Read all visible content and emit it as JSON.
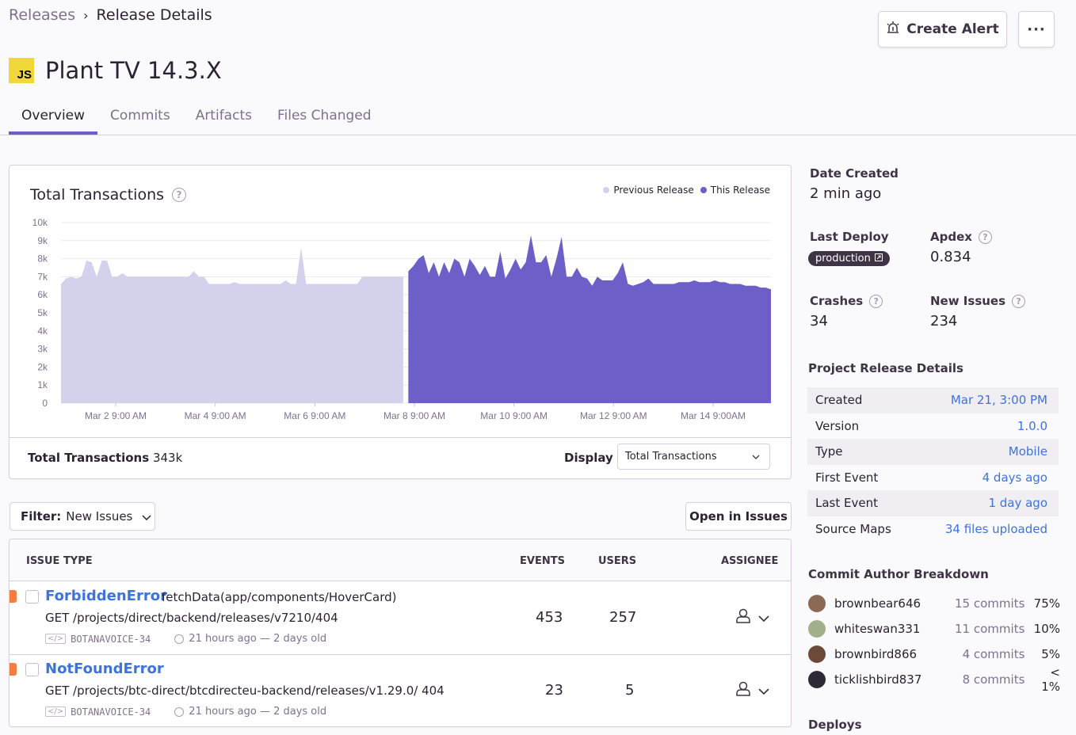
{
  "breadcrumb": {
    "parent": "Releases",
    "current": "Release Details"
  },
  "header": {
    "title": "Plant TV 14.3.X",
    "platform_badge": "JS",
    "create_alert_label": "Create Alert",
    "more_label": "···"
  },
  "tabs": [
    {
      "label": "Overview",
      "active": true
    },
    {
      "label": "Commits",
      "active": false
    },
    {
      "label": "Artifacts",
      "active": false
    },
    {
      "label": "Files Changed",
      "active": false
    }
  ],
  "chart_panel": {
    "total_label": "Total Transactions",
    "total_value": "343k",
    "display_label": "Display",
    "display_value": "Total Transactions"
  },
  "chart_data": {
    "type": "area",
    "title": "Total Transactions",
    "ylim": [
      0,
      10000
    ],
    "y_ticks": [
      "0",
      "1k",
      "2k",
      "3k",
      "4k",
      "5k",
      "6k",
      "7k",
      "8k",
      "9k",
      "10k"
    ],
    "x_ticks": [
      "Mar 2 9:00 AM",
      "Mar 4 9:00 AM",
      "Mar 6 9:00 AM",
      "Mar 8 9:00 AM",
      "Mar 10 9:00 AM",
      "Mar 12 9:00 AM",
      "Mar 14 9:00AM"
    ],
    "grid": true,
    "legend_position": "top-right",
    "series": [
      {
        "name": "Previous Release",
        "color": "#d4d1ec",
        "x": [
          0,
          1,
          2,
          3,
          4,
          5,
          6,
          7,
          8,
          9,
          10,
          11,
          12,
          13,
          14,
          15,
          16,
          17,
          18,
          19,
          20,
          21,
          22,
          23,
          24,
          25,
          26,
          27,
          28,
          29,
          30,
          31,
          32,
          33,
          34,
          35,
          36,
          37,
          38,
          39,
          40,
          41,
          42,
          43,
          44,
          45,
          46,
          47,
          48,
          49,
          50,
          51,
          52,
          53,
          54,
          55,
          56,
          57,
          58,
          59,
          60,
          61,
          62,
          63,
          64,
          65,
          66,
          67
        ],
        "values": [
          6600,
          6900,
          7000,
          6900,
          7000,
          7900,
          7800,
          7000,
          7900,
          7900,
          7000,
          7000,
          7200,
          7000,
          7000,
          7000,
          7000,
          7000,
          7000,
          7000,
          7000,
          7000,
          7000,
          7000,
          7000,
          7000,
          7300,
          7000,
          7000,
          6600,
          6600,
          6600,
          6600,
          6600,
          6700,
          6600,
          6600,
          6600,
          6600,
          6600,
          6600,
          6600,
          6600,
          6600,
          6800,
          6600,
          6600,
          8600,
          6600,
          6600,
          6600,
          6600,
          6600,
          6600,
          6600,
          6600,
          6600,
          6600,
          6600,
          7000,
          7000,
          7000,
          7000,
          7000,
          7000,
          7000,
          7000,
          7000
        ]
      },
      {
        "name": "This Release",
        "color": "#6c5fc7",
        "x": [
          68,
          69,
          70,
          71,
          72,
          73,
          74,
          75,
          76,
          77,
          78,
          79,
          80,
          81,
          82,
          83,
          84,
          85,
          86,
          87,
          88,
          89,
          90,
          91,
          92,
          93,
          94,
          95,
          96,
          97,
          98,
          99,
          100,
          101,
          102,
          103,
          104,
          105,
          106,
          107,
          108,
          109,
          110,
          111,
          112,
          113,
          114,
          115,
          116,
          117,
          118,
          119,
          120,
          121,
          122,
          123,
          124,
          125,
          126,
          127,
          128,
          129,
          130,
          131,
          132,
          133,
          134,
          135,
          136,
          137,
          138,
          139
        ],
        "values": [
          7300,
          7600,
          8000,
          8200,
          7200,
          7800,
          7000,
          7800,
          7200,
          8000,
          7800,
          7000,
          8000,
          7600,
          7100,
          7600,
          7000,
          7000,
          8400,
          6900,
          7400,
          8000,
          7400,
          7800,
          9300,
          7800,
          7800,
          8200,
          7000,
          8000,
          9200,
          7000,
          7000,
          7500,
          7000,
          6900,
          6500,
          7000,
          6800,
          6800,
          6800,
          7200,
          7800,
          6600,
          6500,
          6600,
          6700,
          6900,
          6600,
          6600,
          6600,
          6600,
          6600,
          6700,
          6700,
          6700,
          6800,
          6700,
          6700,
          6700,
          6800,
          6700,
          6700,
          6600,
          6600,
          6600,
          6500,
          6500,
          6500,
          6400,
          6400,
          6300
        ]
      }
    ]
  },
  "filter": {
    "prefix": "Filter:",
    "value": "New Issues"
  },
  "open_in_issues_label": "Open in Issues",
  "issues_table": {
    "columns": {
      "issue_type": "ISSUE TYPE",
      "events": "EVENTS",
      "users": "USERS",
      "assignee": "ASSIGNEE"
    },
    "rows": [
      {
        "title": "ForbiddenError",
        "culprit": "fetchData(app/components/HoverCard)",
        "message": "GET /projects/direct/backend/releases/v7210/404",
        "short_id": "BOTANAVOICE-34",
        "age": "21 hours ago — 2 days old",
        "events": "453",
        "users": "257"
      },
      {
        "title": "NotFoundError",
        "culprit": "",
        "message": "GET /projects/btc-direct/btcdirecteu-backend/releases/v1.29.0/ 404",
        "short_id": "BOTANAVOICE-34",
        "age": "21 hours ago — 2 days old",
        "events": "23",
        "users": "5"
      }
    ]
  },
  "sidebar": {
    "date_created_label": "Date Created",
    "date_created_value": "2 min ago",
    "last_deploy_label": "Last Deploy",
    "last_deploy_env": "production",
    "apdex_label": "Apdex",
    "apdex_value": "0.834",
    "crashes_label": "Crashes",
    "crashes_value": "34",
    "new_issues_label": "New Issues",
    "new_issues_value": "234",
    "project_details_title": "Project Release Details",
    "project_details": [
      {
        "key": "Created",
        "value": "Mar 21, 3:00 PM"
      },
      {
        "key": "Version",
        "value": "1.0.0"
      },
      {
        "key": "Type",
        "value": "Mobile"
      },
      {
        "key": "First Event",
        "value": "4 days ago"
      },
      {
        "key": "Last Event",
        "value": "1 day ago"
      },
      {
        "key": "Source Maps",
        "value": "34 files uploaded"
      }
    ],
    "commit_authors_title": "Commit Author Breakdown",
    "commit_authors": [
      {
        "name": "brownbear646",
        "commits": "15 commits",
        "percent": "75%",
        "avatar_color": "#8a6a55"
      },
      {
        "name": "whiteswan331",
        "commits": "11 commits",
        "percent": "10%",
        "avatar_color": "#9fb08a"
      },
      {
        "name": "brownbird866",
        "commits": "4 commits",
        "percent": "5%",
        "avatar_color": "#6b4a3a"
      },
      {
        "name": "ticklishbird837",
        "commits": "8 commits",
        "percent": "< 1%",
        "avatar_color": "#2d2a35"
      }
    ],
    "deploys_title": "Deploys"
  }
}
